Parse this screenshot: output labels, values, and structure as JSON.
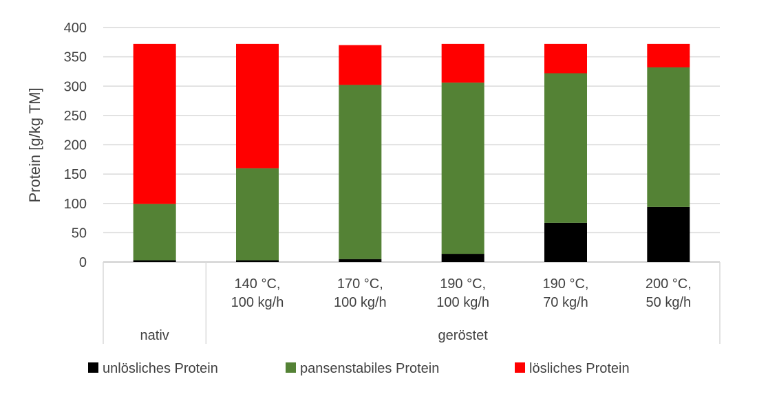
{
  "chart_data": {
    "type": "bar",
    "stacked": true,
    "ylabel": "Protein [g/kg TM]",
    "ylim": [
      0,
      400
    ],
    "yticks": [
      0,
      50,
      100,
      150,
      200,
      250,
      300,
      350,
      400
    ],
    "grid": true,
    "legend_position": "bottom",
    "categories": [
      [
        "",
        ""
      ],
      [
        "140 °C,",
        "100 kg/h"
      ],
      [
        "170 °C,",
        "100 kg/h"
      ],
      [
        "190 °C,",
        "100 kg/h"
      ],
      [
        "190 °C,",
        "70 kg/h"
      ],
      [
        "200 °C,",
        "50 kg/h"
      ]
    ],
    "groups": [
      {
        "label": "nativ",
        "categories": [
          0
        ]
      },
      {
        "label": "geröstet",
        "categories": [
          1,
          2,
          3,
          4,
          5
        ]
      }
    ],
    "series": [
      {
        "name": "unlösliches Protein",
        "color": "#000000",
        "values": [
          3,
          3,
          5,
          14,
          67,
          94
        ]
      },
      {
        "name": "pansenstabiles Protein",
        "color": "#548235",
        "values": [
          96,
          157,
          297,
          292,
          255,
          238
        ]
      },
      {
        "name": "lösliches Protein",
        "color": "#ff0000",
        "values": [
          273,
          212,
          68,
          66,
          50,
          40
        ]
      }
    ]
  }
}
